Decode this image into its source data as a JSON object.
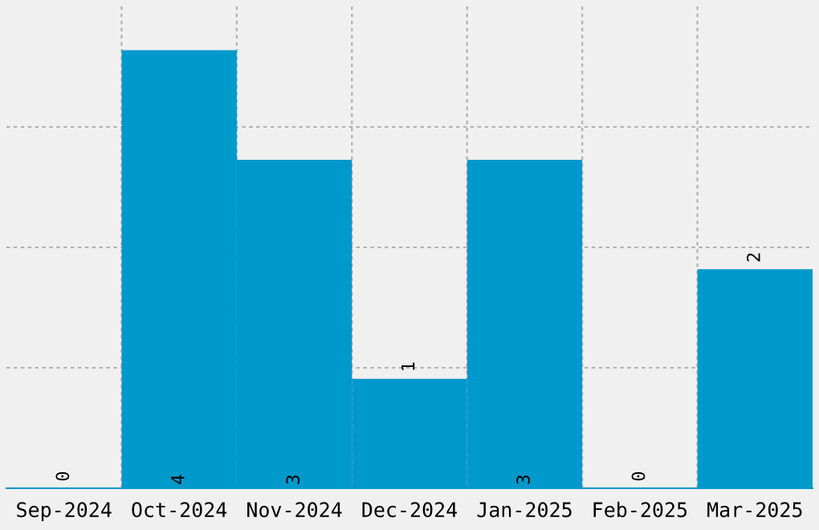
{
  "chart_data": {
    "type": "bar",
    "categories": [
      "Sep-2024",
      "Oct-2024",
      "Nov-2024",
      "Dec-2024",
      "Jan-2025",
      "Feb-2025",
      "Mar-2025"
    ],
    "values": [
      0,
      4,
      3,
      1,
      3,
      0,
      2
    ],
    "color": "#0099cc",
    "data_labels": true,
    "ylim": [
      0,
      4.4
    ],
    "yticks": [
      {
        "value": 1.1,
        "label": null
      },
      {
        "value": 2.2,
        "label": null
      },
      {
        "value": 3.3,
        "label": null
      }
    ],
    "tick_labels": "x",
    "grid": true
  }
}
